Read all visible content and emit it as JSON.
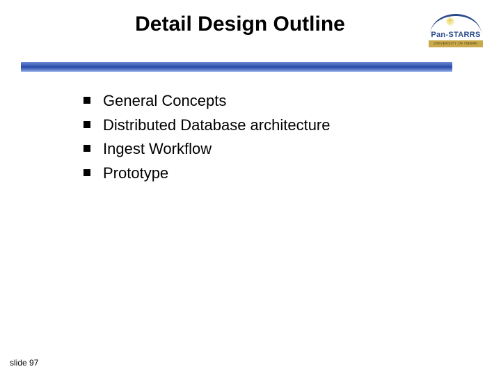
{
  "title": "Detail Design Outline",
  "logo": {
    "main_text": "Pan-STARRS",
    "sub_text": "UNIVERSITY OF HAWAII",
    "text_color": "#2a4a8a",
    "sub_bg": "#c9a94a"
  },
  "divider": {
    "gradient_top": "#6a8ad4",
    "gradient_mid": "#2a4aa4",
    "gradient_bottom": "#8aa8e4"
  },
  "bullets": {
    "items": [
      {
        "text": "General Concepts"
      },
      {
        "text": "Distributed Database architecture"
      },
      {
        "text": "Ingest Workflow"
      },
      {
        "text": "Prototype"
      }
    ],
    "marker_color": "#000000",
    "text_color": "#000000",
    "fontsize": 22
  },
  "footer": {
    "text": "slide 97",
    "fontsize": 12
  },
  "background_color": "#ffffff"
}
